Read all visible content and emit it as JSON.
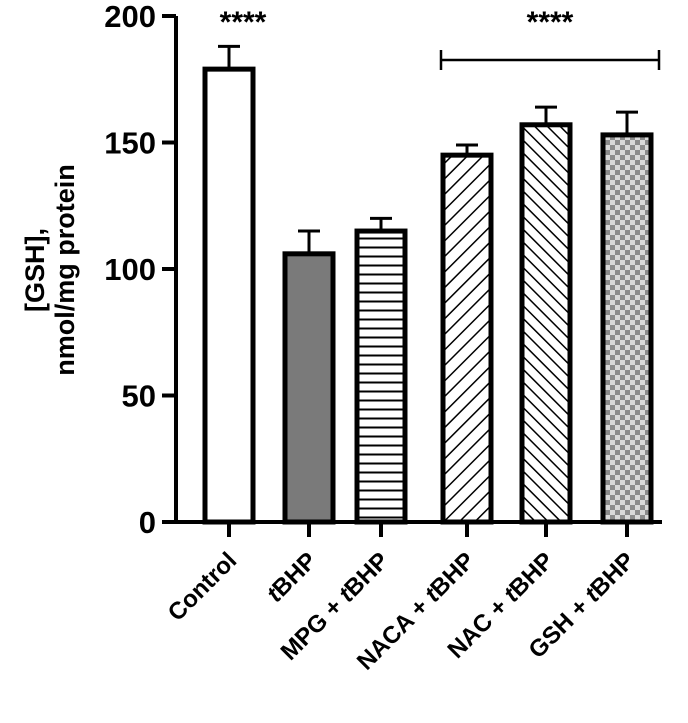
{
  "chart_data": {
    "type": "bar",
    "ylabel_lines": [
      "[GSH],",
      "nmol/mg protein"
    ],
    "xlabel": "",
    "ylim": [
      0,
      200
    ],
    "yticks": [
      0,
      50,
      100,
      150,
      200
    ],
    "grid": false,
    "legend": "none",
    "categories": [
      {
        "prefix": "",
        "italic": "",
        "suffix": "Control"
      },
      {
        "prefix": "",
        "italic": "t",
        "suffix": "BHP"
      },
      {
        "prefix": "MPG + ",
        "italic": "t",
        "suffix": "BHP"
      },
      {
        "prefix": "NACA + ",
        "italic": "t",
        "suffix": "BHP"
      },
      {
        "prefix": "NAC + ",
        "italic": "t",
        "suffix": "BHP"
      },
      {
        "prefix": "GSH + ",
        "italic": "t",
        "suffix": "BHP"
      }
    ],
    "values": [
      179,
      106,
      115,
      145,
      157,
      153
    ],
    "errors": [
      9,
      9,
      5,
      4,
      7,
      9
    ],
    "fills": [
      "open",
      "solid-gray",
      "horizontal-lines",
      "diagonal-lines",
      "diagonal-lines-dense",
      "checkered"
    ],
    "colors": {
      "bar_edge": "#000000",
      "solid_fill": "#7a7a7a",
      "checker_light": "#d9d9d9",
      "checker_dark": "#8c8c8c"
    },
    "significance": [
      {
        "label": "****",
        "bars": [
          0
        ]
      },
      {
        "label": "****",
        "bars": [
          3,
          5
        ],
        "bracket": true
      }
    ]
  }
}
